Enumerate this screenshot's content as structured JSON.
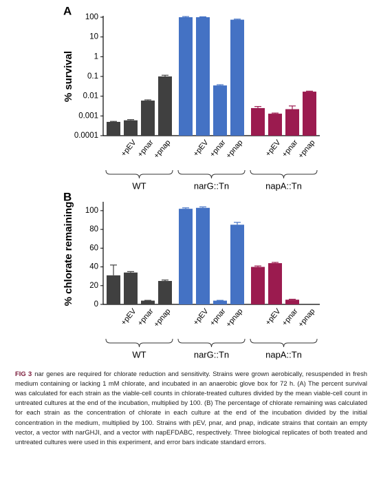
{
  "chart_data": [
    {
      "type": "bar",
      "panel": "A",
      "ylabel": "% survival",
      "log_y": true,
      "ylim": [
        0.0001,
        100
      ],
      "yticks": [
        0.0001,
        0.001,
        0.01,
        0.1,
        1,
        10,
        100
      ],
      "groups": [
        {
          "name": "WT",
          "color": "#404040",
          "categories": [
            null,
            "+pEV",
            "+pnar",
            "+pnap"
          ],
          "values": [
            0.0005,
            0.0006,
            0.006,
            0.1
          ],
          "errors": [
            3e-05,
            5e-05,
            0.0005,
            0.015
          ]
        },
        {
          "name": "narG::Tn",
          "color": "#4472c4",
          "categories": [
            null,
            "+pEV",
            "+pnar",
            "+pnap"
          ],
          "values": [
            100,
            100,
            0.035,
            75
          ],
          "errors": [
            8,
            5,
            0.003,
            5
          ]
        },
        {
          "name": "napA::Tn",
          "color": "#9b1b4f",
          "categories": [
            null,
            "+pEV",
            "+pnar",
            "+pnap"
          ],
          "values": [
            0.0025,
            0.0013,
            0.0022,
            0.017
          ],
          "errors": [
            0.0005,
            0.0001,
            0.001,
            0.001
          ]
        }
      ]
    },
    {
      "type": "bar",
      "panel": "B",
      "ylabel": "% chlorate remaining",
      "log_y": false,
      "ylim": [
        0,
        108
      ],
      "yticks": [
        0,
        20,
        40,
        60,
        80,
        100
      ],
      "groups": [
        {
          "name": "WT",
          "color": "#404040",
          "categories": [
            null,
            "+pEV",
            "+pnar",
            "+pnap"
          ],
          "values": [
            31,
            34,
            4,
            25
          ],
          "errors": [
            11,
            1,
            0.3,
            1
          ]
        },
        {
          "name": "narG::Tn",
          "color": "#4472c4",
          "categories": [
            null,
            "+pEV",
            "+pnar",
            "+pnap"
          ],
          "values": [
            102,
            103,
            4,
            85
          ],
          "errors": [
            1,
            1,
            0.3,
            2.5
          ]
        },
        {
          "name": "napA::Tn",
          "color": "#9b1b4f",
          "categories": [
            null,
            "+pEV",
            "+pnar",
            "+pnap"
          ],
          "values": [
            40,
            44,
            5,
            null
          ],
          "errors": [
            1,
            0.8,
            0.5,
            null
          ]
        }
      ]
    }
  ],
  "caption": {
    "label": "FIG 3",
    "text": "nar genes are required for chlorate reduction and sensitivity. Strains were grown aerobically, resuspended in fresh medium containing or lacking 1 mM chlorate, and incubated in an anaerobic glove box for 72 h. (A) The percent survival was calculated for each strain as the viable-cell counts in chlorate-treated cultures divided by the mean viable-cell count in untreated cultures at the end of the incubation, multiplied by 100. (B) The percentage of chlorate remaining was calculated for each strain as the concentration of chlorate in each culture at the end of the incubation divided by the initial concentration in the medium, multiplied by 100. Strains with pEV, pnar, and pnap, indicate strains that contain an empty vector, a vector with narGHJI, and a vector with napEFDABC, respectively. Three biological replicates of both treated and untreated cultures were used in this experiment, and error bars indicate standard errors."
  }
}
